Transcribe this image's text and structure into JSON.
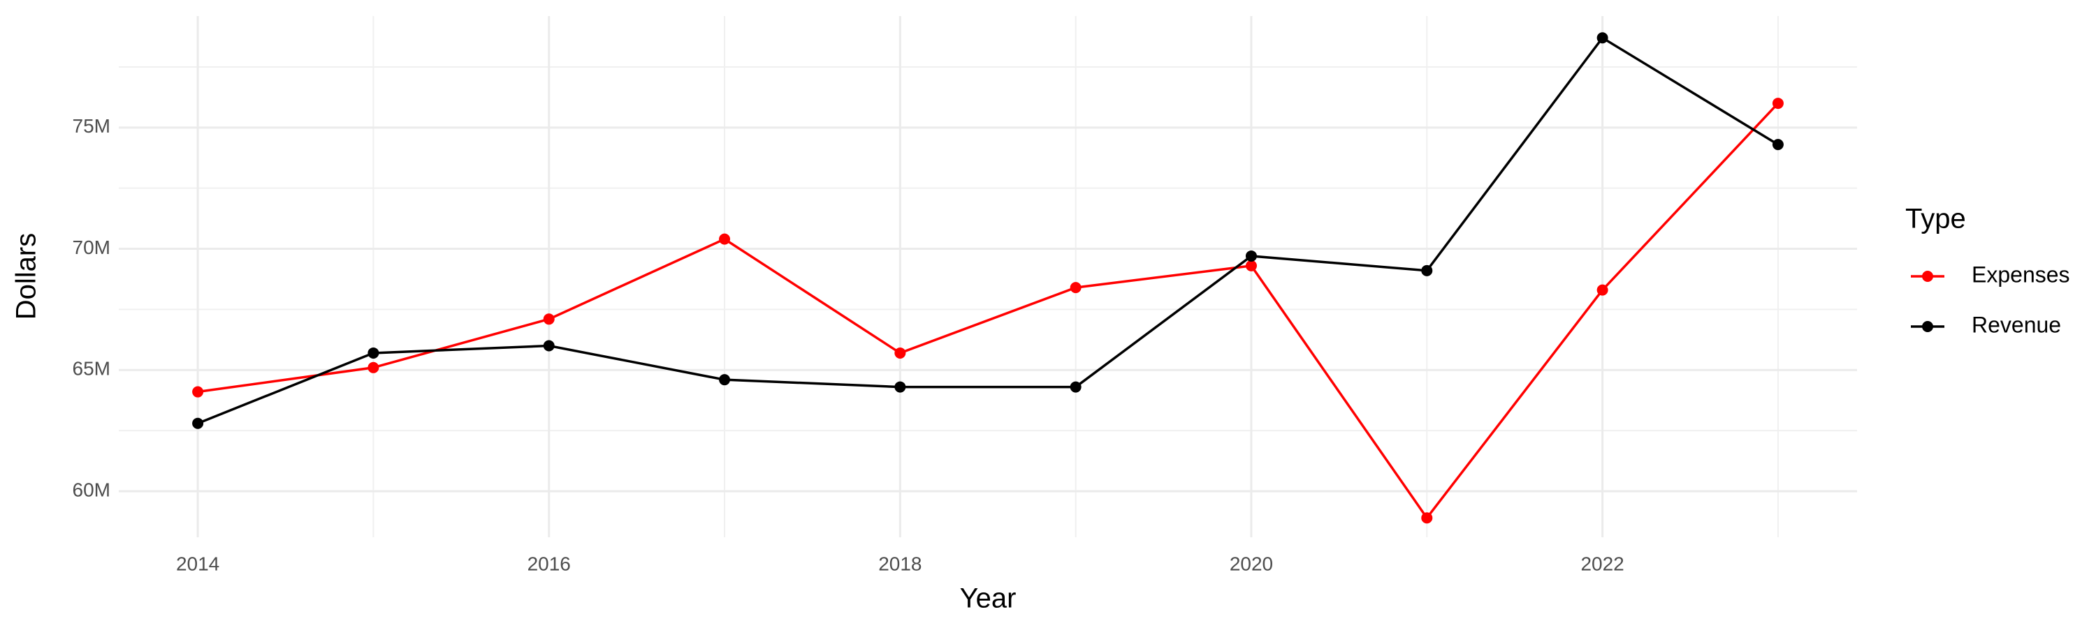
{
  "chart_data": {
    "type": "line",
    "x_label": "Year",
    "y_label": "Dollars",
    "x": [
      2014,
      2015,
      2016,
      2017,
      2018,
      2019,
      2020,
      2021,
      2022,
      2023
    ],
    "series": [
      {
        "name": "Expenses",
        "color": "#ff0000",
        "values": [
          64100000,
          65100000,
          67100000,
          70400000,
          65700000,
          68400000,
          69300000,
          58900000,
          68300000,
          76000000
        ]
      },
      {
        "name": "Revenue",
        "color": "#000000",
        "values": [
          62800000,
          65700000,
          66000000,
          64600000,
          64300000,
          64300000,
          69700000,
          69100000,
          78700000,
          74300000
        ]
      }
    ],
    "xlim": [
      2013.55,
      2023.45
    ],
    "xticks": [
      2014,
      2016,
      2018,
      2020,
      2022
    ],
    "ylim": [
      58100000,
      79600000
    ],
    "yticks": [
      {
        "value": 60000000,
        "label": "60M"
      },
      {
        "value": 65000000,
        "label": "65M"
      },
      {
        "value": 70000000,
        "label": "70M"
      },
      {
        "value": 75000000,
        "label": "75M"
      }
    ],
    "grid": true,
    "legend_title": "Type",
    "legend_position": "right"
  }
}
